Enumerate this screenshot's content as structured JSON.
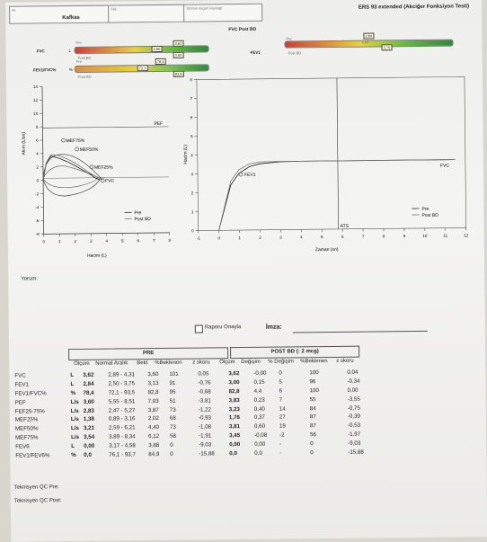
{
  "header": {
    "field1_label": "Irk",
    "field1_value": "Kafkas",
    "field2_label": "Sitil",
    "field3_label": "Tahmin degeri kaynagi",
    "test_title": "ERS 93 extended (Akciğer Fonksiyon Testi)"
  },
  "bars": {
    "fvc_post_bd_title": "FVC Post BD",
    "fvc_label": "FVC",
    "fvc_unit": "L",
    "fvc_pre_tag": "Pre",
    "fvc_post_tag": "Post BD",
    "fvc_nums": [
      "3,62",
      "2,89",
      "3,60",
      "4,31"
    ],
    "fev1fvc_label": "FEV1/FVC%",
    "fev1fvc_unit": "%",
    "fev1fvc_pre_tag": "Pre",
    "fev1fvc_post_tag": "Post BD",
    "fev1fvc_nums": [
      "78,4",
      "72,1",
      "82,8"
    ],
    "fev1_label": "FEV1",
    "fev1_pre_tag": "Pre",
    "fev1_post_tag": "Post BD",
    "fev1_nums": [
      "2,84",
      "3,00",
      "3,75"
    ]
  },
  "flow_volume": {
    "ylabel": "Akım (L/sn)",
    "xlabel": "Hacim (L)",
    "y_ticks": [
      "14",
      "12",
      "10",
      "8",
      "6",
      "4",
      "2",
      "0",
      "-2",
      "-4",
      "-6",
      "-8"
    ],
    "x_ticks": [
      "0",
      "1",
      "2",
      "3",
      "4",
      "5",
      "6",
      "7",
      "8"
    ],
    "label_pef": "PEF",
    "label_mef75": "MEF75%",
    "label_mef50": "MEF50%",
    "label_mef25": "MEF25%",
    "label_fvc": "FVC",
    "legend_pre": "Pre",
    "legend_post": "Post BD"
  },
  "volume_time": {
    "ylabel": "Hacim (L)",
    "xlabel": "Zaman (sn)",
    "y_ticks": [
      "8",
      "7",
      "6",
      "5",
      "4",
      "3",
      "2",
      "1",
      "0"
    ],
    "x_ticks": [
      "-1",
      "0",
      "1",
      "2",
      "3",
      "4",
      "5",
      "6",
      "7",
      "8",
      "9",
      "10",
      "11",
      "12"
    ],
    "label_fev1": "FEV1",
    "label_fvc": "FVC",
    "label_ats": "ATS",
    "legend_pre": "Pre",
    "legend_post": "Post BD"
  },
  "chart_data": [
    {
      "type": "line",
      "xlabel": "Hacim (L)",
      "ylabel": "Akım (L/sn)",
      "xlim": [
        0,
        8
      ],
      "ylim": [
        -8,
        14
      ],
      "series": [
        {
          "name": "Pre",
          "x": [
            0,
            0.2,
            0.5,
            1.0,
            1.5,
            2.0,
            2.5,
            3.0,
            3.3,
            3.6
          ],
          "y": [
            0,
            2.5,
            3.6,
            3.3,
            2.8,
            2.2,
            1.5,
            0.8,
            0.3,
            0
          ]
        },
        {
          "name": "Post BD",
          "x": [
            0,
            0.2,
            0.5,
            1.0,
            1.5,
            2.0,
            2.5,
            3.0,
            3.5,
            3.8
          ],
          "y": [
            0,
            2.6,
            3.8,
            3.7,
            3.2,
            2.6,
            1.8,
            1.0,
            0.3,
            0
          ]
        }
      ]
    },
    {
      "type": "line",
      "xlabel": "Zaman (sn)",
      "ylabel": "Hacim (L)",
      "xlim": [
        -1,
        12
      ],
      "ylim": [
        0,
        8
      ],
      "series": [
        {
          "name": "Pre",
          "x": [
            0,
            0.3,
            0.6,
            1.0,
            1.5,
            2.0,
            3.0,
            4.0,
            6.0,
            11.5
          ],
          "y": [
            0,
            1.2,
            2.4,
            3.0,
            3.35,
            3.5,
            3.6,
            3.62,
            3.62,
            3.62
          ]
        },
        {
          "name": "Post BD",
          "x": [
            0,
            0.3,
            0.6,
            1.0,
            1.5,
            2.0,
            3.0,
            4.0,
            6.0,
            11.5
          ],
          "y": [
            0,
            1.3,
            2.6,
            3.2,
            3.5,
            3.6,
            3.62,
            3.62,
            3.62,
            3.62
          ]
        }
      ]
    }
  ],
  "comment_label": "Yorum:",
  "approve_label": "Raporu Onayla",
  "signature_label": "İmza:",
  "section_pre": "PRE",
  "section_post": "POST BD (: 2 mcg)",
  "columns": [
    "Ölçüm",
    "Normal Aralık",
    "Bekl.",
    "%Beklenen",
    "z skoru",
    "Ölçüm",
    "Değişim",
    "% Değişim",
    "%Beklenen",
    "z skoru"
  ],
  "rows": [
    {
      "name": "FVC",
      "unit": "L",
      "olcum": "3,62",
      "aralik": "2,89 - 4,31",
      "bekl": "3,60",
      "pct": "101",
      "z": "0,05",
      "post": "3,62",
      "deg": "-0,00",
      "pdeg": "0",
      "ppct": "100",
      "pz": "0,04"
    },
    {
      "name": "FEV1",
      "unit": "L",
      "olcum": "2,84",
      "aralik": "2,50 - 3,75",
      "bekl": "3,13",
      "pct": "91",
      "z": "-0,76",
      "post": "3,00",
      "deg": "0,15",
      "pdeg": "5",
      "ppct": "96",
      "pz": "-0,34"
    },
    {
      "name": "FEV1/FVC%",
      "unit": "%",
      "olcum": "78,4",
      "aralik": "72,1 - 93,5",
      "bekl": "82,8",
      "pct": "95",
      "z": "-0,68",
      "post": "82,8",
      "deg": "4,4",
      "pdeg": "6",
      "ppct": "100",
      "pz": "0,00"
    },
    {
      "name": "PEF",
      "unit": "L/s",
      "olcum": "3,60",
      "aralik": "5,55 - 8,51",
      "bekl": "7,03",
      "pct": "51",
      "z": "-3,81",
      "post": "3,83",
      "deg": "0,23",
      "pdeg": "7",
      "ppct": "55",
      "pz": "-3,55"
    },
    {
      "name": "FEF25-75%",
      "unit": "L/s",
      "olcum": "2,83",
      "aralik": "2,47 - 5,27",
      "bekl": "3,87",
      "pct": "73",
      "z": "-1,22",
      "post": "3,23",
      "deg": "0,40",
      "pdeg": "14",
      "ppct": "84",
      "pz": "-0,75"
    },
    {
      "name": "MEF25%",
      "unit": "L/s",
      "olcum": "1,38",
      "aralik": "0,89 - 3,16",
      "bekl": "2,02",
      "pct": "68",
      "z": "-0,93",
      "post": "1,76",
      "deg": "0,37",
      "pdeg": "27",
      "ppct": "87",
      "pz": "-0,39"
    },
    {
      "name": "MEF50%",
      "unit": "L/s",
      "olcum": "3,21",
      "aralik": "2,59 - 6,21",
      "bekl": "4,40",
      "pct": "73",
      "z": "-1,08",
      "post": "3,81",
      "deg": "0,60",
      "pdeg": "19",
      "ppct": "87",
      "pz": "-0,53"
    },
    {
      "name": "MEF75%",
      "unit": "L/s",
      "olcum": "3,54",
      "aralik": "3,89 - 8,34",
      "bekl": "6,12",
      "pct": "58",
      "z": "-1,91",
      "post": "3,45",
      "deg": "-0,08",
      "pdeg": "-2",
      "ppct": "56",
      "pz": "-1,97"
    },
    {
      "name": "FEV6",
      "unit": "L",
      "olcum": "0,00",
      "aralik": "3,17 - 4,58",
      "bekl": "3,88",
      "pct": "0",
      "z": "-9,03",
      "post": "0,00",
      "deg": "0,00",
      "pdeg": "-",
      "ppct": "0",
      "pz": "-9,03"
    },
    {
      "name": "FEV1/FEV6%",
      "unit": "%",
      "olcum": "0,0",
      "aralik": "76,1 - 93,7",
      "bekl": "84,9",
      "pct": "0",
      "z": "-15,88",
      "post": "0,0",
      "deg": "0,0",
      "pdeg": "-",
      "ppct": "0",
      "pz": "-15,88"
    }
  ],
  "technician_pre": "Teknisyen QC Pre:",
  "technician_post": "Teknisyen QC Post:"
}
